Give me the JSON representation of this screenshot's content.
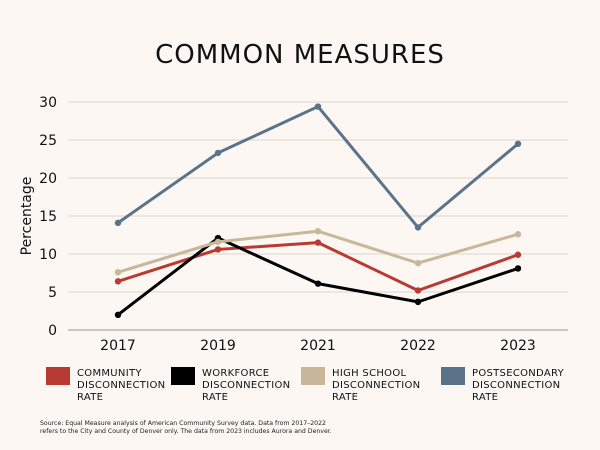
{
  "chart_data": {
    "type": "line",
    "title": "COMMON MEASURES",
    "xlabel": "",
    "ylabel": "Percentage",
    "categories": [
      "2017",
      "2019",
      "2021",
      "2022",
      "2023"
    ],
    "yticks": [
      "0",
      "5",
      "10",
      "15",
      "20",
      "25",
      "30"
    ],
    "ylim": [
      0,
      30
    ],
    "grid": true,
    "legend_position": "bottom",
    "series": [
      {
        "name": "COMMUNITY DISCONNECTION RATE",
        "legend_lines": [
          "COMMUNITY",
          "DISCONNECTION",
          "RATE"
        ],
        "color": "#b83a32",
        "values": [
          6.4,
          10.6,
          11.5,
          5.2,
          9.9
        ]
      },
      {
        "name": "WORKFORCE DISCONNECTION RATE",
        "legend_lines": [
          "WORKFORCE",
          "DISCONNECTION",
          "RATE"
        ],
        "color": "#000000",
        "values": [
          2.0,
          12.1,
          6.1,
          3.7,
          8.1
        ]
      },
      {
        "name": "HIGH SCHOOL DISCONNECTION RATE",
        "legend_lines": [
          "HIGH SCHOOL",
          "DISCONNECTION",
          "RATE"
        ],
        "color": "#c9b79b",
        "values": [
          7.6,
          11.6,
          13.0,
          8.8,
          12.6
        ]
      },
      {
        "name": "POSTSECONDARY DISCONNECTION RATE",
        "legend_lines": [
          "POSTSECONDARY",
          "DISCONNECTION",
          "RATE"
        ],
        "color": "#5a7389",
        "values": [
          14.1,
          23.3,
          29.4,
          13.5,
          24.5
        ]
      }
    ],
    "source": "Source:  Equal Measure analysis of American Community Survey data. Data from 2017–2022 refers to the City and County of Denver only. The data from 2023 includes Aurora and Denver."
  }
}
